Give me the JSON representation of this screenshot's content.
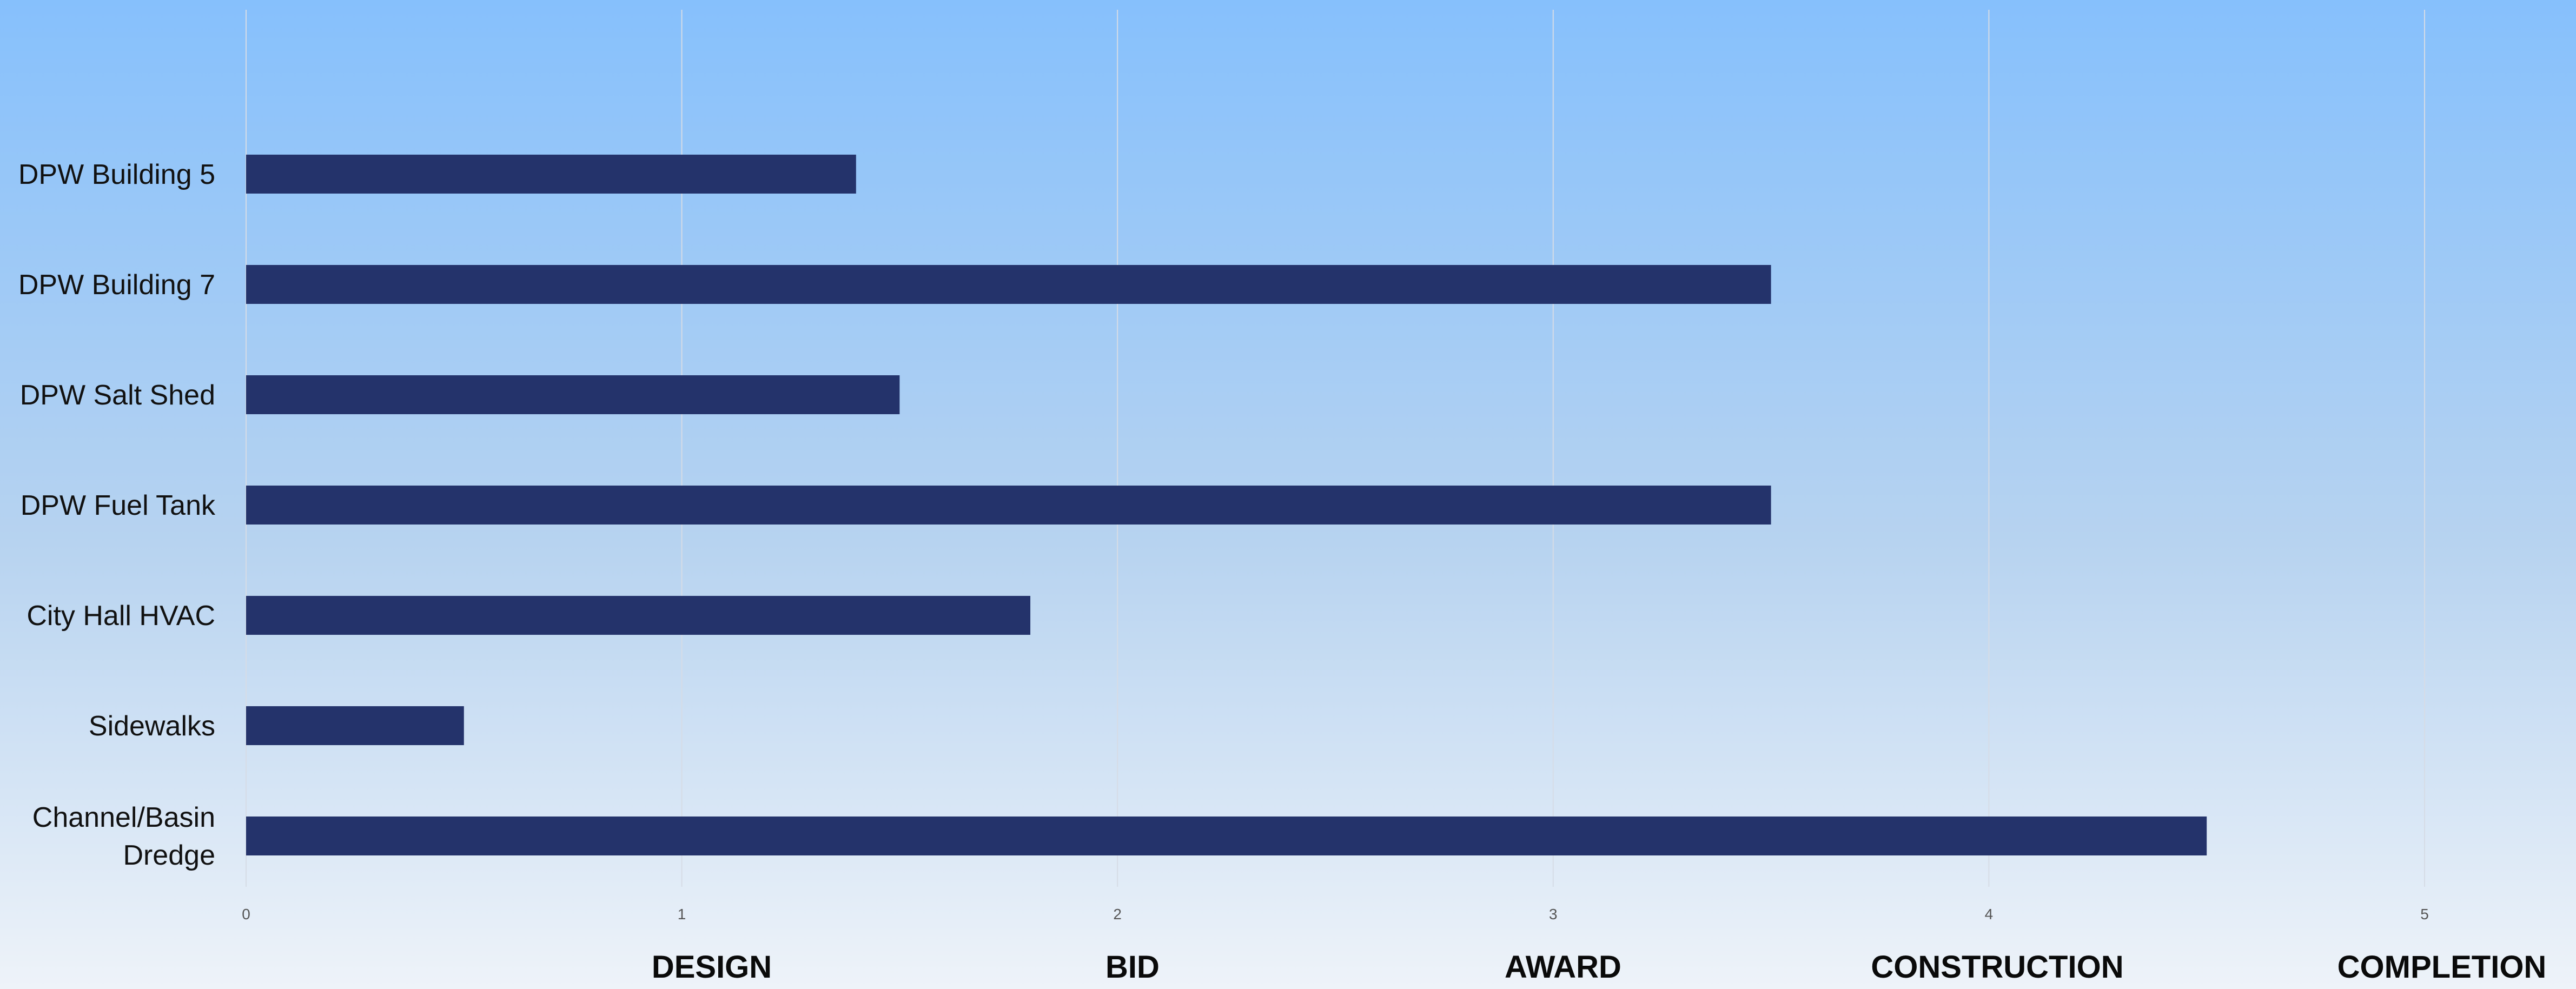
{
  "chart_data": {
    "type": "bar",
    "orientation": "horizontal",
    "title": "",
    "xlabel": "",
    "ylabel": "",
    "categories": [
      [
        "DPW Building 5"
      ],
      [
        "DPW Building 7"
      ],
      [
        "DPW Salt Shed"
      ],
      [
        "DPW Fuel Tank"
      ],
      [
        "City Hall HVAC"
      ],
      [
        "Sidewalks"
      ],
      [
        "Channel/Basin",
        "Dredge"
      ]
    ],
    "values": [
      1.4,
      3.5,
      1.5,
      3.5,
      1.8,
      0.5,
      4.5
    ],
    "xlim": [
      0,
      5
    ],
    "x_ticks": [
      "0",
      "1",
      "2",
      "3",
      "4",
      "5"
    ],
    "stages": [
      "DESIGN",
      "BID",
      "AWARD",
      "CONSTRUCTION",
      "COMPLETION"
    ],
    "grid": true,
    "legend": "none",
    "colors": {
      "bar": "#24336b",
      "grid": "#d6dce6"
    }
  }
}
